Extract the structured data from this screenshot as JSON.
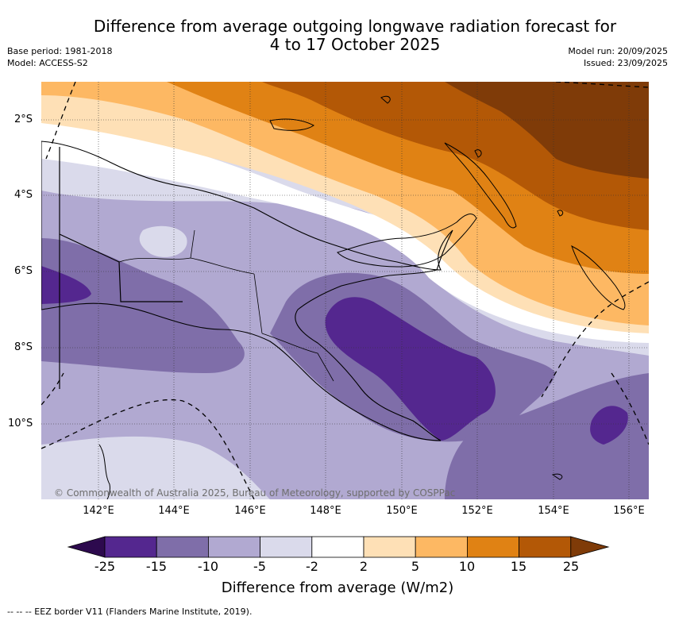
{
  "title_line1": "Difference from average outgoing longwave radiation forecast for",
  "title_line2": "4 to 17 October 2025",
  "base_period": "Base period: 1981-2018",
  "model": "Model: ACCESS-S2",
  "model_run": "Model run: 20/09/2025",
  "issued": "Issued: 23/09/2025",
  "lat_labels": [
    "2°S",
    "4°S",
    "6°S",
    "8°S",
    "10°S"
  ],
  "lon_labels": [
    "142°E",
    "144°E",
    "146°E",
    "148°E",
    "150°E",
    "152°E",
    "154°E",
    "156°E"
  ],
  "copyright": "© Commonwealth of Australia 2025, Bureau of Meteorology, supported by COSPPac",
  "colorbar": {
    "ticks": [
      "-25",
      "-15",
      "-10",
      "-5",
      "-2",
      "2",
      "5",
      "10",
      "15",
      "25"
    ],
    "colors": {
      "below": "#2d0a4e",
      "b1": "#54278f",
      "b2": "#7f6ea9",
      "b3": "#b1a9d1",
      "b4": "#dadaeb",
      "b5": "#ffffff",
      "b6": "#fee0b6",
      "b7": "#fdb863",
      "b8": "#e08214",
      "b9": "#b35806",
      "above": "#7f3b08"
    },
    "label": "Difference from average (W/m2)"
  },
  "eez_note": "--  --  -- EEZ border V11 (Flanders Marine Institute, 2019)."
}
